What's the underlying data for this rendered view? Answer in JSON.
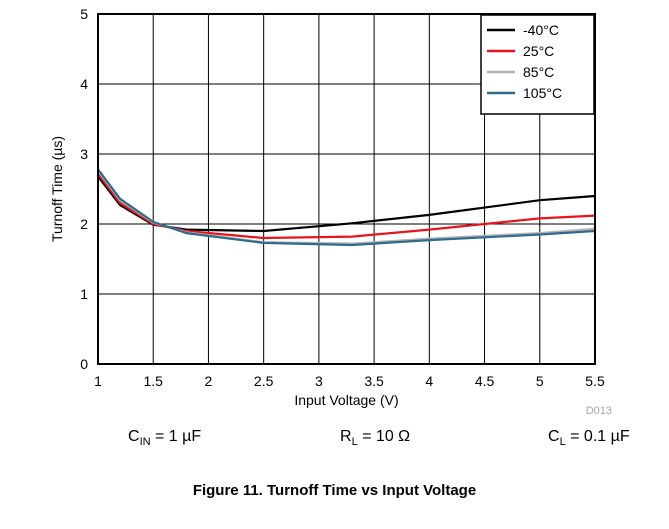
{
  "chart_data": {
    "type": "line",
    "title": "",
    "xlabel": "Input Voltage (V)",
    "ylabel": "Turnoff Time (µs)",
    "xlim": [
      1,
      5.5
    ],
    "ylim": [
      0,
      5
    ],
    "xticks": [
      "1",
      "1.5",
      "2",
      "2.5",
      "3",
      "3.5",
      "4",
      "4.5",
      "5",
      "5.5"
    ],
    "yticks": [
      "0",
      "1",
      "2",
      "3",
      "4",
      "5"
    ],
    "grid": true,
    "legend_position": "top-right",
    "x": [
      1,
      1.2,
      1.5,
      1.8,
      2.5,
      3.3,
      4,
      5,
      5.5
    ],
    "series": [
      {
        "name": "-40°C",
        "color": "#000000",
        "values": [
          2.68,
          2.27,
          1.99,
          1.92,
          1.9,
          2.01,
          2.13,
          2.34,
          2.4
        ]
      },
      {
        "name": "25°C",
        "color": "#e8141c",
        "values": [
          2.72,
          2.3,
          2.0,
          1.9,
          1.8,
          1.82,
          1.92,
          2.08,
          2.12
        ]
      },
      {
        "name": "85°C",
        "color": "#b3b3b3",
        "values": [
          2.76,
          2.34,
          2.02,
          1.88,
          1.74,
          1.72,
          1.79,
          1.87,
          1.93
        ]
      },
      {
        "name": "105°C",
        "color": "#2e6b8f",
        "values": [
          2.78,
          2.36,
          2.03,
          1.87,
          1.73,
          1.7,
          1.77,
          1.85,
          1.9
        ]
      }
    ],
    "watermark": "D013"
  },
  "conditions": {
    "cin": {
      "main": "C",
      "sub": "IN",
      "rest": " = 1 µF"
    },
    "rl": {
      "main": "R",
      "sub": "L",
      "rest": " = 10 Ω"
    },
    "cl": {
      "main": "C",
      "sub": "L",
      "rest": " = 0.1 µF"
    }
  },
  "caption": "Figure 11. Turnoff Time vs Input Voltage"
}
